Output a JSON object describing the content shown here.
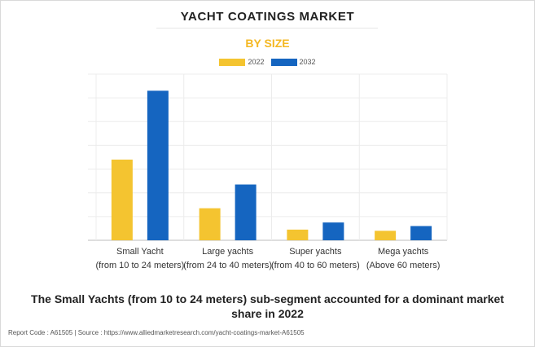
{
  "title": "YACHT COATINGS MARKET",
  "subtitle": "BY SIZE",
  "conclusion": "The Small Yachts (from 10 to 24 meters) sub-segment accounted for a dominant market share in 2022",
  "footer": "Report Code : A61505  |  Source : https://www.alliedmarketresearch.com/yacht-coatings-market-A61505",
  "colors": {
    "2022": "#f4c430",
    "2032": "#1565c0",
    "subtitle": "#f4b823"
  },
  "chart_data": {
    "type": "bar",
    "title": "YACHT COATINGS MARKET",
    "subtitle": "BY SIZE",
    "categories": [
      [
        "Small Yacht",
        "(from 10 to 24 meters)"
      ],
      [
        "Large yachts",
        "(from 24 to 40 meters)"
      ],
      [
        "Super yachts",
        "(from 40 to 60 meters)"
      ],
      [
        "Mega yachts",
        "(Above 60 meters)"
      ]
    ],
    "series": [
      {
        "name": "2022",
        "values": [
          3.4,
          1.35,
          0.45,
          0.4
        ]
      },
      {
        "name": "2032",
        "values": [
          6.3,
          2.35,
          0.75,
          0.6
        ]
      }
    ],
    "ylim": [
      0,
      7
    ],
    "y_gridlines": 7,
    "y_tick_labels_shown": false,
    "grid": true,
    "legend": "top-center",
    "xlabel": "",
    "ylabel": ""
  }
}
